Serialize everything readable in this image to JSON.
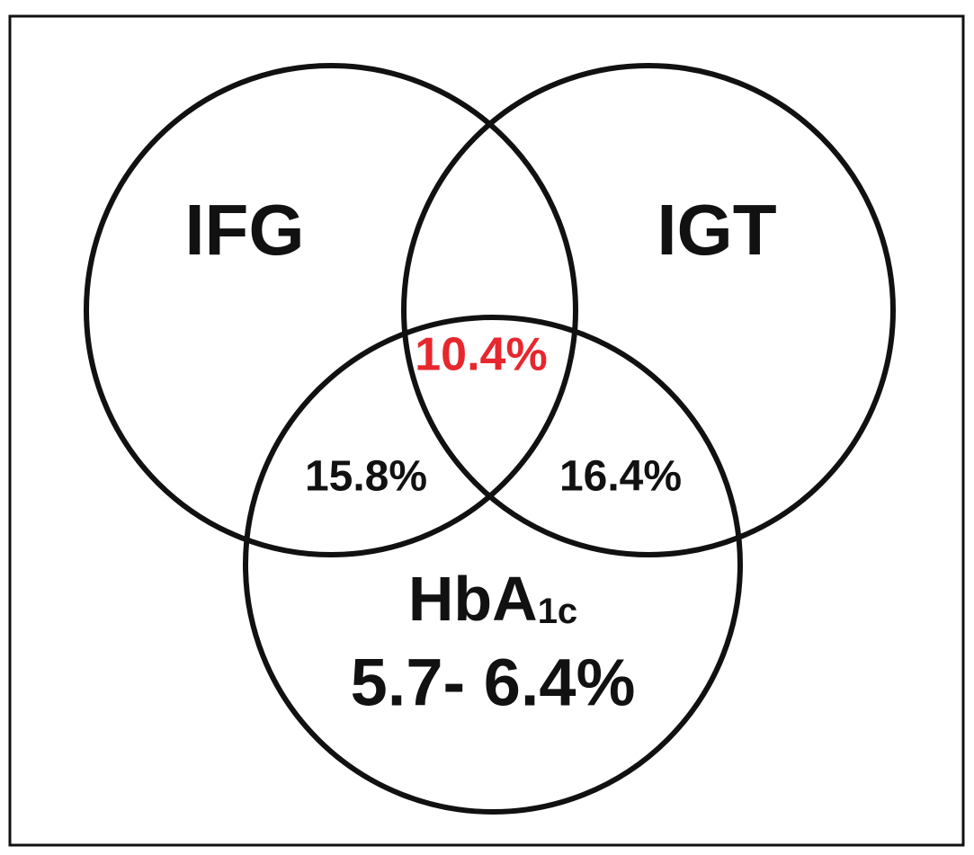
{
  "sets": [
    {
      "label": "IFG"
    },
    {
      "label": "IGT"
    },
    {
      "label": "HbA",
      "subscript": "1c",
      "range": "5.7- 6.4%"
    }
  ],
  "regions": [
    {
      "label": "10.4%",
      "color": "#e8262d"
    },
    {
      "label": "15.8%"
    },
    {
      "label": "16.4%"
    }
  ]
}
